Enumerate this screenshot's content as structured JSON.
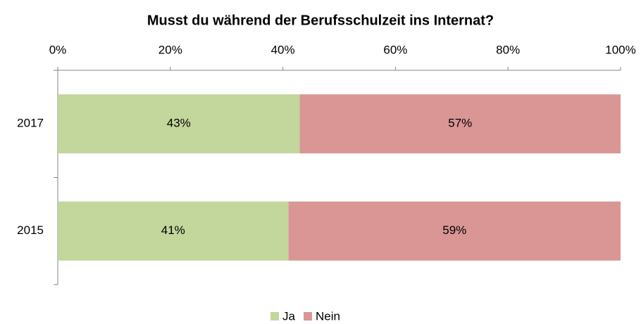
{
  "chart_data": {
    "type": "stacked_barh",
    "title": "Musst du während der Berufsschulzeit ins Internat?",
    "categories": [
      "2017",
      "2015"
    ],
    "series": [
      {
        "name": "Ja",
        "color": "#c3d69b",
        "values": [
          43,
          41
        ],
        "value_labels": [
          "43%",
          "41%"
        ]
      },
      {
        "name": "Nein",
        "color": "#d99694",
        "values": [
          57,
          59
        ],
        "value_labels": [
          "57%",
          "59%"
        ]
      }
    ],
    "xlim": [
      0,
      100
    ],
    "xticks": [
      {
        "value": 0,
        "label": "0%"
      },
      {
        "value": 20,
        "label": "20%"
      },
      {
        "value": 40,
        "label": "40%"
      },
      {
        "value": 60,
        "label": "60%"
      },
      {
        "value": 80,
        "label": "80%"
      },
      {
        "value": 100,
        "label": "100%"
      }
    ],
    "legend": "bottom"
  }
}
